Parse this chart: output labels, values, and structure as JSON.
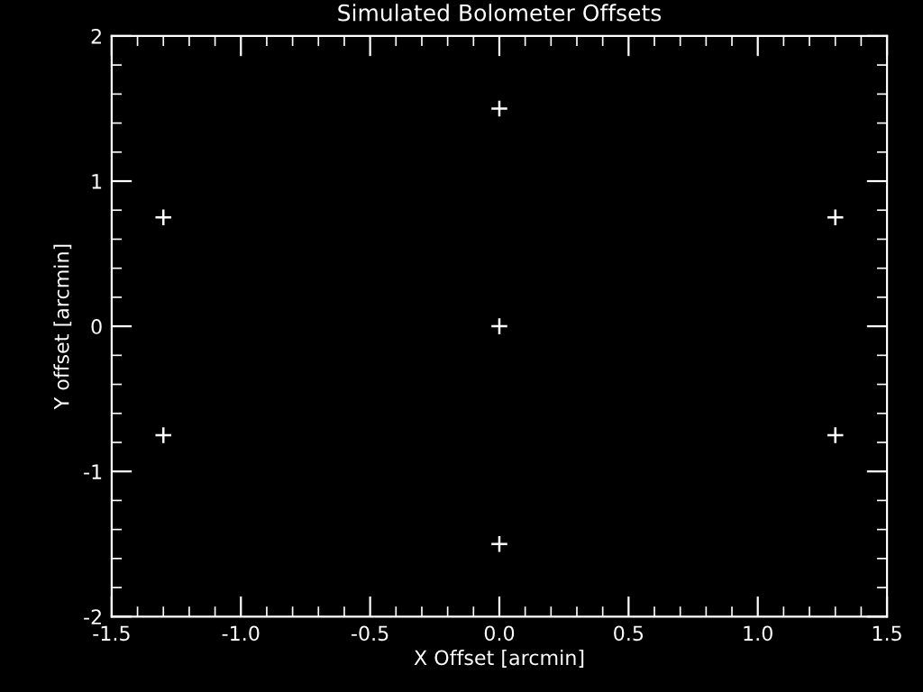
{
  "chart_data": {
    "type": "scatter",
    "title": "Simulated Bolometer Offsets",
    "xlabel": "X Offset [arcmin]",
    "ylabel": "Y offset [arcmin]",
    "x": [
      -1.3,
      -1.3,
      0,
      0,
      0,
      1.3,
      1.3
    ],
    "series": [
      {
        "color": "#ffffff",
        "values": [
          0.75,
          -0.75,
          1.5,
          0,
          -1.5,
          0.75,
          -0.75
        ]
      }
    ],
    "xlim": [
      -1.5,
      1.5
    ],
    "xticks": [
      -1.5,
      {
        "value": -1,
        "label": "-1.0"
      },
      -0.5,
      {
        "value": 0,
        "label": "0.0"
      },
      0.5,
      {
        "value": 1,
        "label": "1.0"
      },
      1.5
    ],
    "ylim": [
      -2,
      2
    ],
    "yticks": [
      -2,
      -1,
      0,
      1,
      2
    ],
    "marker": "cross",
    "grid": false
  }
}
